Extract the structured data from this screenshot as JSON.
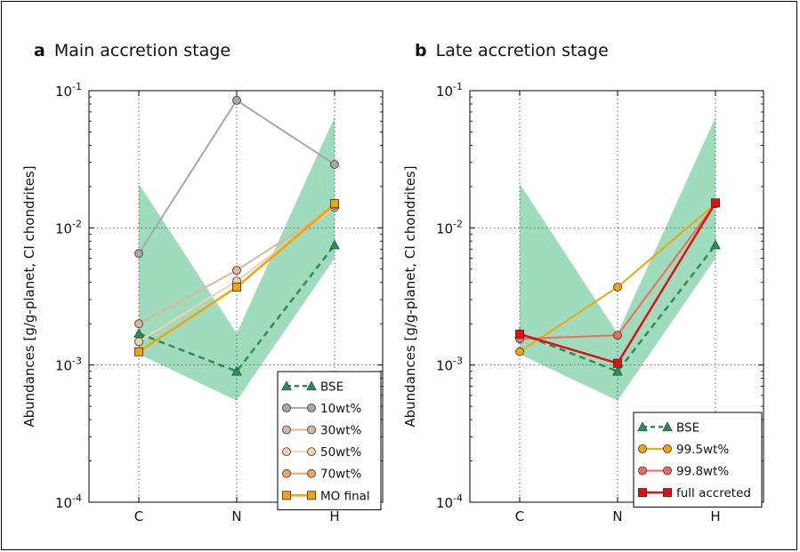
{
  "chart_data": [
    {
      "type": "line",
      "panel_letter": "a",
      "title": "Main accretion stage",
      "ylabel": "Abundances [g/g-planet, CI chondrites]",
      "y_scale": "log",
      "ylim": [
        0.0001,
        0.1
      ],
      "y_ticks": [
        {
          "value": 0.1,
          "base": "10",
          "exp": "-1"
        },
        {
          "value": 0.01,
          "base": "10",
          "exp": "-2"
        },
        {
          "value": 0.001,
          "base": "10",
          "exp": "-3"
        },
        {
          "value": 0.0001,
          "base": "10",
          "exp": "-4"
        }
      ],
      "categories": [
        "C",
        "N",
        "H"
      ],
      "grid": true,
      "legend_position": "bottom-right",
      "band": {
        "upper": [
          0.021,
          0.0017,
          0.064
        ],
        "lower": [
          0.0012,
          0.00055,
          0.006
        ],
        "color": "#9fdbbd"
      },
      "series": [
        {
          "name": "BSE",
          "values": [
            0.0017,
            0.0009,
            0.0075
          ],
          "color": "#2e8b57",
          "marker": "triangle",
          "dashed": true,
          "linewidth": 2.5
        },
        {
          "name": "10wt%",
          "values": [
            0.0065,
            0.085,
            0.029
          ],
          "color": "#a8a8a8",
          "marker_fill": "#a8a8a8",
          "marker": "circle",
          "dashed": false,
          "linewidth": 2
        },
        {
          "name": "30wt%",
          "values": [
            0.002,
            0.0049,
            0.0142
          ],
          "color": "#d9b79a",
          "marker_fill": "#d9b79a",
          "marker": "circle",
          "dashed": false,
          "linewidth": 2
        },
        {
          "name": "50wt%",
          "values": [
            0.00148,
            0.0041,
            0.0141
          ],
          "color": "#f7cfad",
          "marker_fill": "#f7cfad",
          "marker": "circle",
          "dashed": false,
          "linewidth": 2
        },
        {
          "name": "70wt%",
          "values": [
            0.00125,
            0.0037,
            0.0146
          ],
          "color": "#f0a468",
          "marker_fill": "#f0a468",
          "marker": "circle",
          "dashed": false,
          "linewidth": 2
        },
        {
          "name": "MO final",
          "values": [
            0.00125,
            0.0037,
            0.015
          ],
          "color": "#f5a30a",
          "marker_fill": "#f5a30a",
          "marker": "square",
          "dashed": false,
          "linewidth": 2.5
        }
      ]
    },
    {
      "type": "line",
      "panel_letter": "b",
      "title": "Late accretion stage",
      "ylabel": "Abundances [g/g-planet, CI chondrites]",
      "y_scale": "log",
      "ylim": [
        0.0001,
        0.1
      ],
      "y_ticks": [
        {
          "value": 0.1,
          "base": "10",
          "exp": "-1"
        },
        {
          "value": 0.01,
          "base": "10",
          "exp": "-2"
        },
        {
          "value": 0.001,
          "base": "10",
          "exp": "-3"
        },
        {
          "value": 0.0001,
          "base": "10",
          "exp": "-4"
        }
      ],
      "categories": [
        "C",
        "N",
        "H"
      ],
      "grid": true,
      "legend_position": "bottom-right",
      "band": {
        "upper": [
          0.021,
          0.0017,
          0.064
        ],
        "lower": [
          0.0012,
          0.00055,
          0.006
        ],
        "color": "#9fdbbd"
      },
      "series": [
        {
          "name": "BSE",
          "values": [
            0.0017,
            0.0009,
            0.0075
          ],
          "color": "#2e8b57",
          "marker": "triangle",
          "dashed": true,
          "linewidth": 2.5
        },
        {
          "name": "99.5wt%",
          "values": [
            0.00125,
            0.0037,
            0.015
          ],
          "color": "#f5a30a",
          "marker_fill": "#f5a30a",
          "marker": "circle",
          "dashed": false,
          "linewidth": 2
        },
        {
          "name": "99.8wt%",
          "values": [
            0.00155,
            0.00165,
            0.015
          ],
          "color": "#f26b5a",
          "marker_fill": "#f26b5a",
          "marker": "circle",
          "dashed": false,
          "linewidth": 2
        },
        {
          "name": "full accreted",
          "values": [
            0.00168,
            0.00103,
            0.0152
          ],
          "color": "#e01010",
          "marker_fill": "#e01010",
          "marker": "square",
          "dashed": false,
          "linewidth": 2.5
        }
      ]
    }
  ]
}
